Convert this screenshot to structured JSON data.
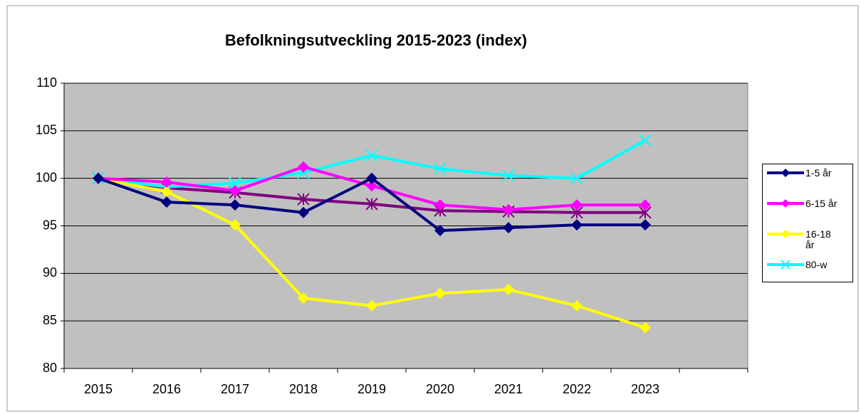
{
  "chart_data": {
    "type": "line",
    "title": "Befolkningsutveckling 2015-2023 (index)",
    "categories": [
      "2015",
      "2016",
      "2017",
      "2018",
      "2019",
      "2020",
      "2021",
      "2022",
      "2023",
      null
    ],
    "series": [
      {
        "name": "1-5 år",
        "color": "#000080",
        "marker": "diamond",
        "values": [
          100,
          97.5,
          97.2,
          96.4,
          100,
          94.5,
          94.8,
          95.1,
          95.1,
          null
        ]
      },
      {
        "name": "6-15 år",
        "color": "#ff00ff",
        "marker": "diamond",
        "values": [
          100,
          99.6,
          98.7,
          101.2,
          99.2,
          97.2,
          96.7,
          97.2,
          97.2,
          null
        ]
      },
      {
        "name": "16-18 år",
        "color": "#ffff00",
        "marker": "diamond",
        "values": [
          100,
          98.6,
          95.1,
          87.4,
          86.6,
          87.9,
          88.3,
          86.6,
          84.3,
          null
        ]
      },
      {
        "name": "80-w",
        "color": "#00ffff",
        "marker": "x",
        "values": [
          100,
          99.1,
          99.5,
          100.6,
          102.4,
          101.0,
          100.3,
          100.0,
          104.0,
          null
        ]
      },
      {
        "color": "#800080",
        "marker": "star",
        "values": [
          100,
          99.0,
          98.5,
          97.8,
          97.3,
          96.6,
          96.5,
          96.4,
          96.4,
          null
        ]
      }
    ],
    "ylim": [
      80,
      110
    ],
    "yticks": [
      80,
      85,
      90,
      95,
      100,
      105,
      110
    ],
    "grid": true,
    "legend": "right"
  }
}
